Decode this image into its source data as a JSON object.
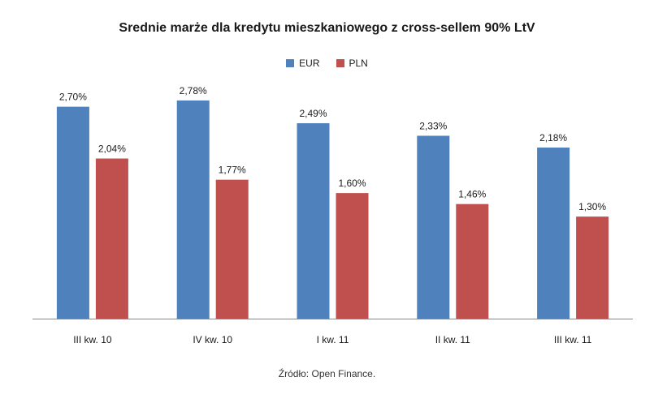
{
  "chart_data": {
    "type": "bar",
    "title": "Srednie marże dla kredytu mieszkaniowego z cross-sellem 90% LtV",
    "categories": [
      "III kw. 10",
      "IV kw. 10",
      "I kw. 11",
      "II kw. 11",
      "III kw. 11"
    ],
    "series": [
      {
        "name": "EUR",
        "color": "#4F81BD",
        "values": [
          2.7,
          2.78,
          2.49,
          2.33,
          2.18
        ],
        "labels": [
          "2,70%",
          "2,78%",
          "2,49%",
          "2,33%",
          "2,18%"
        ]
      },
      {
        "name": "PLN",
        "color": "#C0504D",
        "values": [
          2.04,
          1.77,
          1.6,
          1.46,
          1.3
        ],
        "labels": [
          "2,04%",
          "1,77%",
          "1,60%",
          "1,46%",
          "1,30%"
        ]
      }
    ],
    "xlabel": "",
    "ylabel": "",
    "ylim": [
      0,
      2.8
    ],
    "grid": false,
    "legend": "top-center"
  },
  "source": "Źródło: Open Finance."
}
